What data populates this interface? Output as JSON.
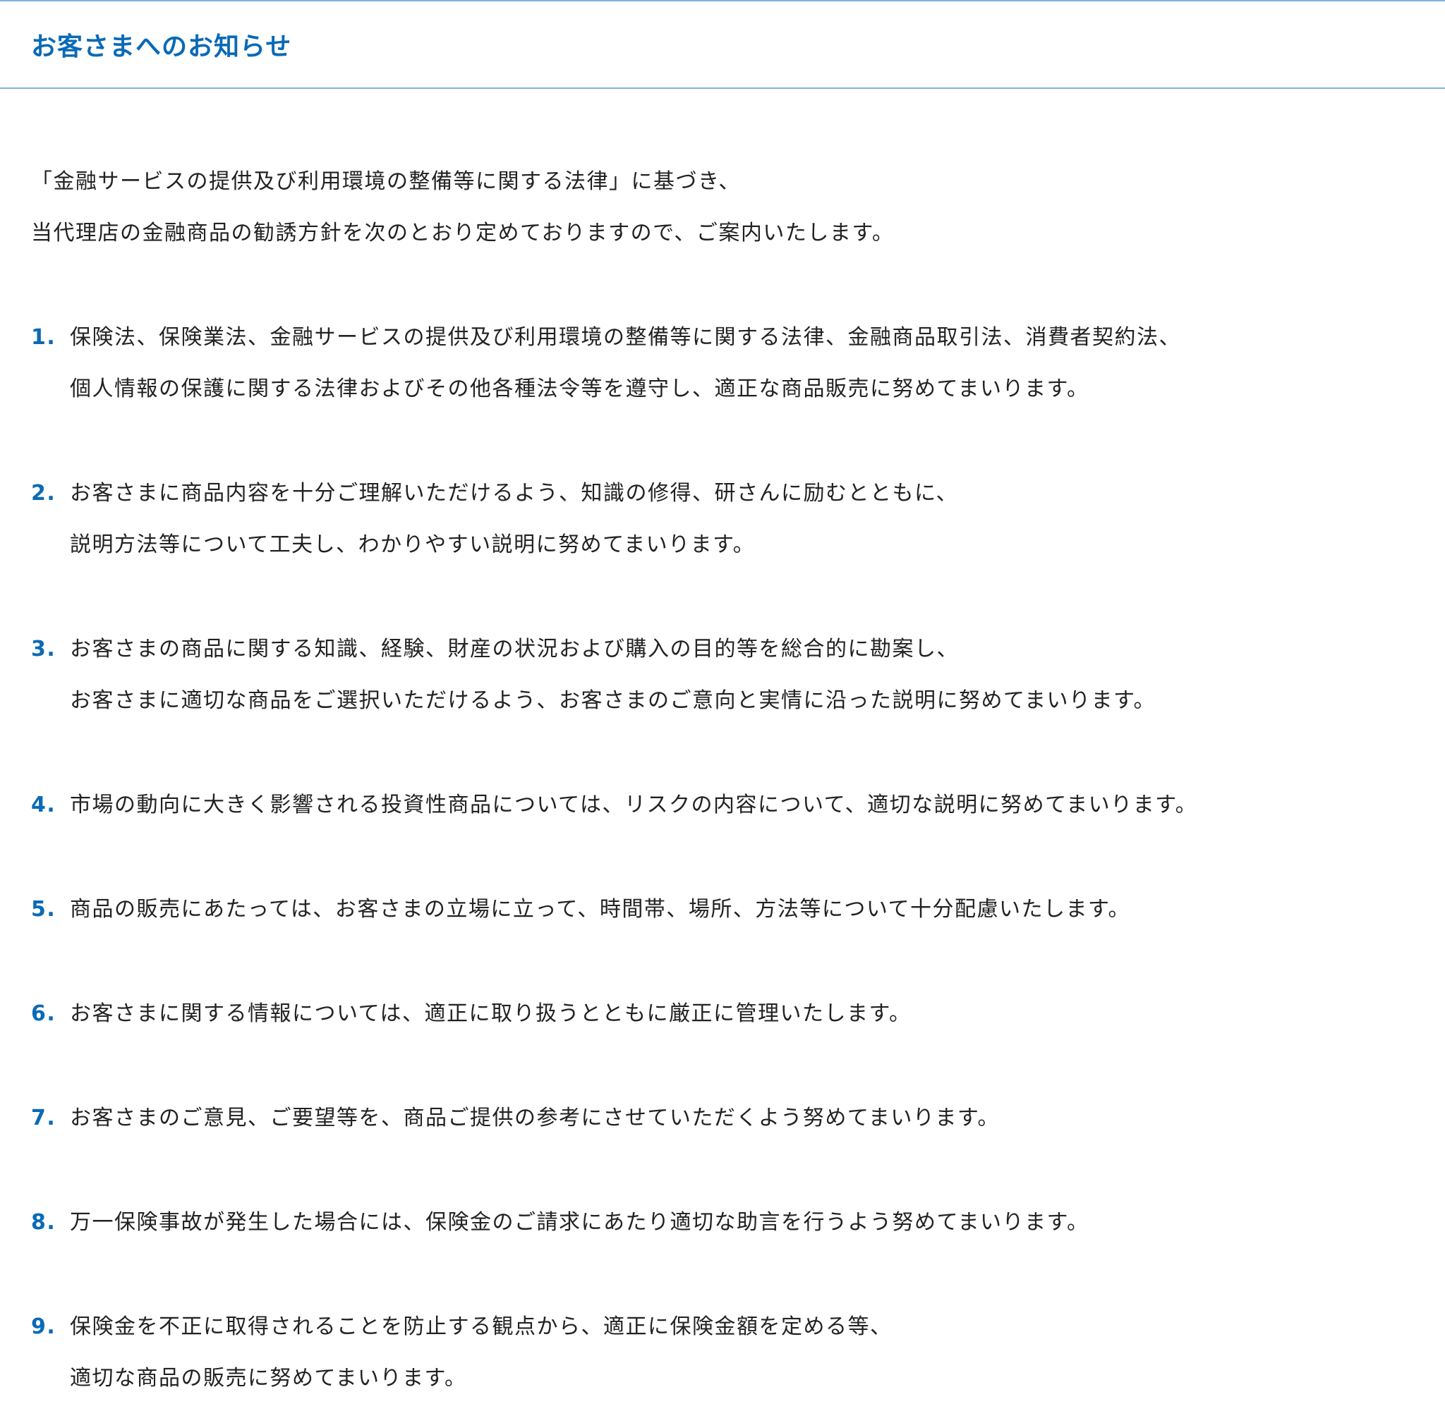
{
  "header": {
    "title": "お客さまへのお知らせ"
  },
  "colors": {
    "accent": "#0a6ab6",
    "border": "#7fb3da"
  },
  "intro": [
    "「金融サービスの提供及び利用環境の整備等に関する法律」に基づき、",
    "当代理店の金融商品の勧誘方針を次のとおり定めておりますので、ご案内いたします。"
  ],
  "items": [
    {
      "num": "1.",
      "lines": [
        "保険法、保険業法、金融サービスの提供及び利用環境の整備等に関する法律、金融商品取引法、消費者契約法、",
        "個人情報の保護に関する法律およびその他各種法令等を遵守し、適正な商品販売に努めてまいります。"
      ]
    },
    {
      "num": "2.",
      "lines": [
        "お客さまに商品内容を十分ご理解いただけるよう、知識の修得、研さんに励むとともに、",
        "説明方法等について工夫し、わかりやすい説明に努めてまいります。"
      ]
    },
    {
      "num": "3.",
      "lines": [
        "お客さまの商品に関する知識、経験、財産の状況および購入の目的等を総合的に勘案し、",
        "お客さまに適切な商品をご選択いただけるよう、お客さまのご意向と実情に沿った説明に努めてまいります。"
      ]
    },
    {
      "num": "4.",
      "lines": [
        "市場の動向に大きく影響される投資性商品については、リスクの内容について、適切な説明に努めてまいります。"
      ]
    },
    {
      "num": "5.",
      "lines": [
        "商品の販売にあたっては、お客さまの立場に立って、時間帯、場所、方法等について十分配慮いたします。"
      ]
    },
    {
      "num": "6.",
      "lines": [
        "お客さまに関する情報については、適正に取り扱うとともに厳正に管理いたします。"
      ]
    },
    {
      "num": "7.",
      "lines": [
        "お客さまのご意見、ご要望等を、商品ご提供の参考にさせていただくよう努めてまいります。"
      ]
    },
    {
      "num": "8.",
      "lines": [
        "万一保険事故が発生した場合には、保険金のご請求にあたり適切な助言を行うよう努めてまいります。"
      ]
    },
    {
      "num": "9.",
      "lines": [
        "保険金を不正に取得されることを防止する観点から、適正に保険金額を定める等、",
        "適切な商品の販売に努めてまいります。"
      ]
    }
  ]
}
